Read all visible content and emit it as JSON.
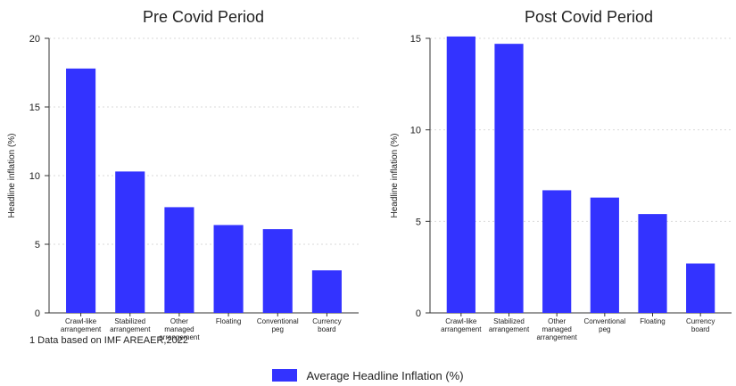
{
  "colors": {
    "bar": "#3333ff",
    "grid": "#d9d9d9",
    "axis": "#333333",
    "text": "#222222"
  },
  "chart_data": [
    {
      "type": "bar",
      "title": "Pre Covid Period",
      "ylabel": "Headline inflation (%)",
      "ylim": [
        0,
        20
      ],
      "yticks": [
        0,
        5,
        10,
        15,
        20
      ],
      "grid": true,
      "categories": [
        [
          "Crawl-like",
          "arrangement"
        ],
        [
          "Stabilized",
          "arrangement"
        ],
        [
          "Other",
          "managed",
          "arrangement"
        ],
        [
          "Floating"
        ],
        [
          "Conventional",
          "peg"
        ],
        [
          "Currency",
          "board"
        ]
      ],
      "values": [
        17.8,
        10.3,
        7.7,
        6.4,
        6.1,
        3.1
      ]
    },
    {
      "type": "bar",
      "title": "Post Covid Period",
      "ylabel": "Headline inflation (%)",
      "ylim": [
        0,
        15
      ],
      "yticks": [
        0,
        5,
        10,
        15
      ],
      "grid": true,
      "categories": [
        [
          "Crawl-like",
          "arrangement"
        ],
        [
          "Stabilized",
          "arrangement"
        ],
        [
          "Other",
          "managed",
          "arrangement"
        ],
        [
          "Conventional",
          "peg"
        ],
        [
          "Floating"
        ],
        [
          "Currency",
          "board"
        ]
      ],
      "values": [
        15.1,
        14.7,
        6.7,
        6.3,
        5.4,
        2.7
      ]
    }
  ],
  "footnote": "1 Data based on IMF AREAER,2022",
  "legend": {
    "label": "Average Headline Inflation (%)",
    "position": "bottom"
  }
}
